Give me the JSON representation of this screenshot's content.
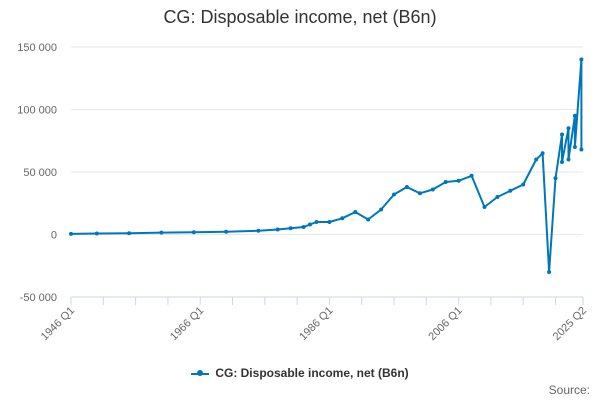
{
  "chart_data": {
    "type": "line",
    "title": "CG: Disposable income, net (B6n)",
    "xlabel": "",
    "ylabel": "",
    "ylim": [
      -50000,
      150000
    ],
    "y_ticks": [
      "-50 000",
      "0",
      "50 000",
      "100 000",
      "150 000"
    ],
    "x_range": [
      "1946 Q1",
      "2025 Q2"
    ],
    "x_ticks": [
      "1946 Q1",
      "1966 Q1",
      "1986 Q1",
      "2006 Q1",
      "2025 Q2"
    ],
    "grid": "horizontal",
    "legend_position": "bottom",
    "series_color": "#0077bb",
    "series": [
      {
        "name": "CG: Disposable income, net (B6n)",
        "x": [
          "1946",
          "1950",
          "1955",
          "1960",
          "1965",
          "1970",
          "1975",
          "1978",
          "1980",
          "1982",
          "1983",
          "1984",
          "1986",
          "1988",
          "1990",
          "1992",
          "1994",
          "1996",
          "1998",
          "2000",
          "2002",
          "2004",
          "2006",
          "2008",
          "2010",
          "2012",
          "2014",
          "2016",
          "2018",
          "2019",
          "2020",
          "2021",
          "2022",
          "2022",
          "2023",
          "2023",
          "2024",
          "2024",
          "2025",
          "2025"
        ],
        "values": [
          500,
          800,
          1000,
          1500,
          1800,
          2200,
          3000,
          4000,
          5000,
          6000,
          8000,
          10000,
          10000,
          13000,
          18000,
          12000,
          20000,
          32000,
          38000,
          33000,
          36000,
          42000,
          43000,
          47000,
          22000,
          30000,
          35000,
          40000,
          60000,
          65000,
          -30000,
          45000,
          80000,
          58000,
          85000,
          60000,
          95000,
          70000,
          140000,
          68000
        ]
      }
    ]
  },
  "legend": {
    "label": "CG: Disposable income, net (B6n)"
  },
  "source_label": "Source:"
}
